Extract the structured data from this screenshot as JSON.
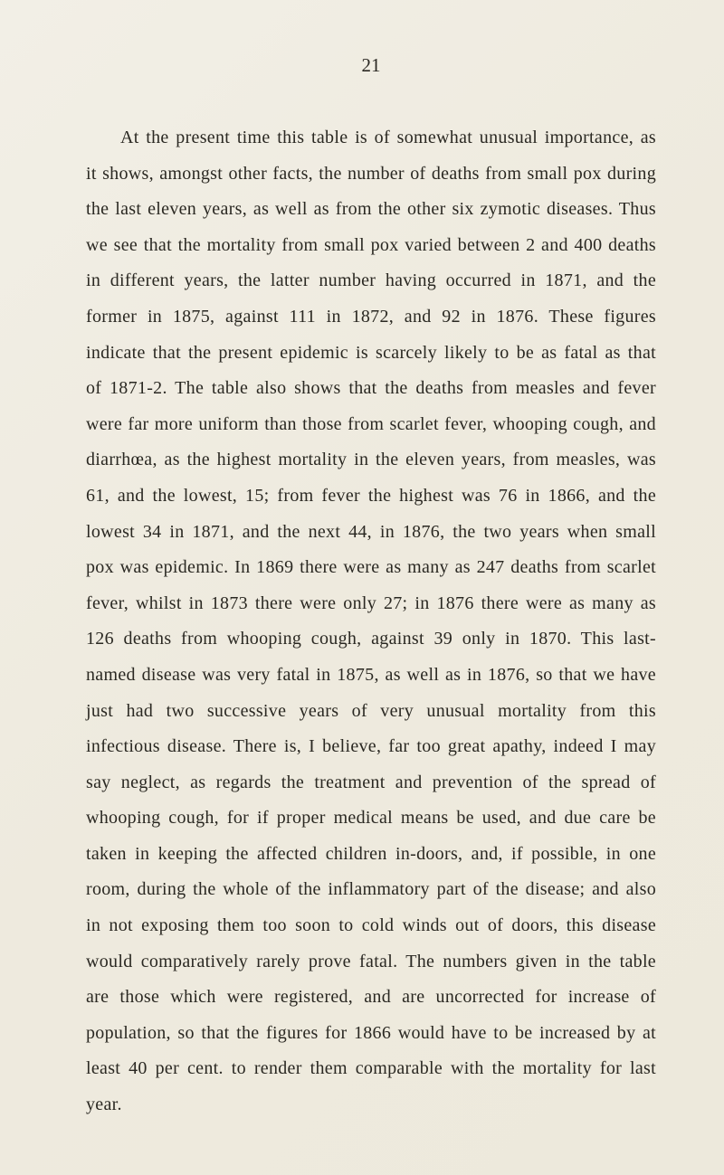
{
  "page": {
    "number": "21",
    "background_color": "#f0ede4",
    "text_color": "#2a2822",
    "body_fontsize": 20,
    "line_height": 1.98,
    "font_family": "Georgia, 'Times New Roman', serif"
  },
  "paragraph": {
    "text": "At the present time this table is of somewhat unusual importance, as it shows, amongst other facts, the number of deaths from small pox during the last eleven years, as well as from the other six zymotic diseases. Thus we see that the mortality from small pox varied between 2 and 400 deaths in different years, the latter number having occurred in 1871, and the former in 1875, against 111 in 1872, and 92 in 1876. These figures indicate that the present epidemic is scarcely likely to be as fatal as that of 1871-2. The table also shows that the deaths from measles and fever were far more uniform than those from scarlet fever, whooping cough, and diarrhœa, as the highest mortality in the eleven years, from measles, was 61, and the lowest, 15; from fever the highest was 76 in 1866, and the lowest 34 in 1871, and the next 44, in 1876, the two years when small pox was epidemic. In 1869 there were as many as 247 deaths from scarlet fever, whilst in 1873 there were only 27; in 1876 there were as many as 126 deaths from whooping cough, against 39 only in 1870. This last-named disease was very fatal in 1875, as well as in 1876, so that we have just had two successive years of very unusual mortality from this infectious disease. There is, I believe, far too great apathy, indeed I may say neglect, as regards the treatment and prevention of the spread of whooping cough, for if proper medical means be used, and due care be taken in keeping the affected children in-doors, and, if possible, in one room, during the whole of the inflammatory part of the disease; and also in not exposing them too soon to cold winds out of doors, this disease would comparatively rarely prove fatal. The numbers given in the table are those which were registered, and are uncorrected for increase of population, so that the figures for 1866 would have to be increased by at least 40 per cent. to render them comparable with the mortality for last year."
  }
}
